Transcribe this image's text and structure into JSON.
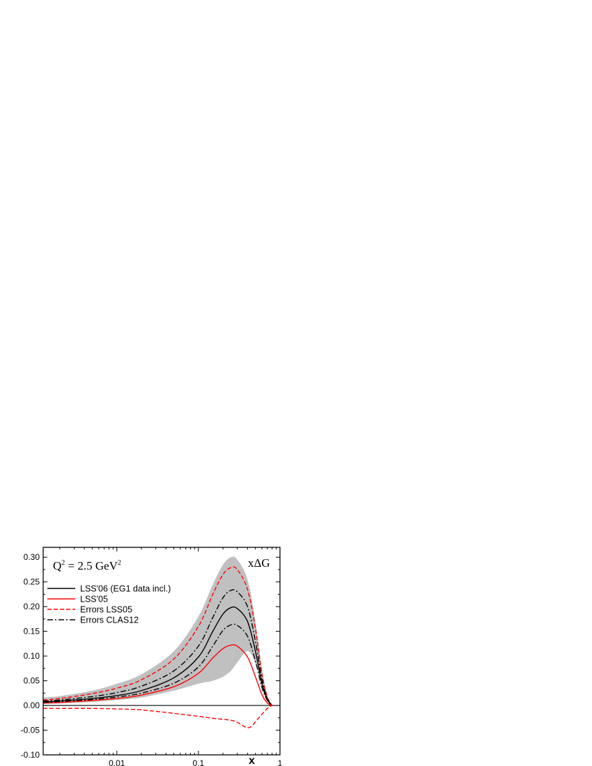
{
  "chart_data": {
    "type": "line",
    "annotation": "Q² = 2.5 GeV²",
    "annotation_parts": {
      "q": "Q",
      "q_exp": "2",
      "eq": " = 2.5 GeV",
      "gev_exp": "2"
    },
    "quantity_label": "xΔG",
    "xlabel": "x",
    "ylabel": "",
    "xscale": "log",
    "xlim": [
      0.00125,
      1.0
    ],
    "ylim": [
      -0.1,
      0.32
    ],
    "x_ticks": [
      {
        "value": 0.01,
        "label": "0.01"
      },
      {
        "value": 0.1,
        "label": "0.1"
      },
      {
        "value": 1,
        "label": "1"
      }
    ],
    "y_ticks": [
      {
        "value": -0.1,
        "label": "-0.10"
      },
      {
        "value": -0.05,
        "label": "-0.05"
      },
      {
        "value": 0.0,
        "label": "0.00"
      },
      {
        "value": 0.05,
        "label": "0.05"
      },
      {
        "value": 0.1,
        "label": "0.10"
      },
      {
        "value": 0.15,
        "label": "0.15"
      },
      {
        "value": 0.2,
        "label": "0.20"
      },
      {
        "value": 0.25,
        "label": "0.25"
      },
      {
        "value": 0.3,
        "label": "0.30"
      }
    ],
    "legend_placement": "top-left",
    "band": {
      "color": "#c0c0c0",
      "x": [
        0.00125,
        0.002,
        0.005,
        0.01,
        0.02,
        0.05,
        0.1,
        0.15,
        0.2,
        0.25,
        0.3,
        0.4,
        0.5,
        0.6,
        0.7,
        0.8
      ],
      "upper": [
        0.016,
        0.019,
        0.03,
        0.044,
        0.063,
        0.11,
        0.18,
        0.245,
        0.285,
        0.3,
        0.295,
        0.255,
        0.17,
        0.075,
        0.02,
        0.0
      ],
      "lower": [
        0.003,
        0.004,
        0.007,
        0.011,
        0.016,
        0.03,
        0.044,
        0.05,
        0.058,
        0.07,
        0.087,
        0.11,
        0.085,
        0.035,
        0.01,
        0.0
      ]
    },
    "series": [
      {
        "name": "LSS'06 (EG1 data incl.)",
        "color": "#000000",
        "style": "solid",
        "x": [
          0.00125,
          0.002,
          0.005,
          0.01,
          0.02,
          0.05,
          0.1,
          0.15,
          0.2,
          0.25,
          0.3,
          0.4,
          0.5,
          0.6,
          0.7,
          0.8
        ],
        "y": [
          0.007,
          0.009,
          0.014,
          0.02,
          0.03,
          0.056,
          0.098,
          0.15,
          0.185,
          0.198,
          0.196,
          0.17,
          0.11,
          0.045,
          0.012,
          0.0
        ]
      },
      {
        "name": "LSS'05",
        "color": "#ff0000",
        "style": "solid",
        "x": [
          0.00125,
          0.002,
          0.005,
          0.01,
          0.02,
          0.05,
          0.1,
          0.15,
          0.2,
          0.25,
          0.3,
          0.4,
          0.5,
          0.6,
          0.7,
          0.8
        ],
        "y": [
          0.005,
          0.006,
          0.01,
          0.014,
          0.021,
          0.038,
          0.065,
          0.096,
          0.115,
          0.122,
          0.12,
          0.098,
          0.058,
          0.022,
          0.005,
          0.0
        ]
      },
      {
        "name": "Errors LSS05",
        "color": "#ff0000",
        "style": "dashed",
        "x": [
          0.00125,
          0.002,
          0.005,
          0.01,
          0.02,
          0.05,
          0.1,
          0.15,
          0.2,
          0.25,
          0.3,
          0.4,
          0.5,
          0.6,
          0.7,
          0.8
        ],
        "y": [
          0.011,
          0.014,
          0.024,
          0.035,
          0.052,
          0.094,
          0.16,
          0.225,
          0.265,
          0.279,
          0.275,
          0.235,
          0.155,
          0.065,
          0.017,
          0.0
        ]
      },
      {
        "name": "",
        "color": "#ff0000",
        "style": "dashed",
        "x": [
          0.00125,
          0.002,
          0.005,
          0.01,
          0.02,
          0.05,
          0.1,
          0.15,
          0.2,
          0.25,
          0.3,
          0.35,
          0.4,
          0.45,
          0.5,
          0.6,
          0.7,
          0.8
        ],
        "y": [
          -0.006,
          -0.006,
          -0.006,
          -0.007,
          -0.009,
          -0.016,
          -0.022,
          -0.026,
          -0.028,
          -0.03,
          -0.034,
          -0.041,
          -0.045,
          -0.042,
          -0.033,
          -0.018,
          -0.006,
          0.0
        ]
      },
      {
        "name": "Errors CLAS12",
        "color": "#000000",
        "style": "dashdot",
        "x": [
          0.00125,
          0.002,
          0.005,
          0.01,
          0.02,
          0.05,
          0.1,
          0.15,
          0.2,
          0.25,
          0.3,
          0.4,
          0.5,
          0.6,
          0.7,
          0.8
        ],
        "y": [
          0.009,
          0.011,
          0.018,
          0.026,
          0.039,
          0.07,
          0.12,
          0.178,
          0.218,
          0.233,
          0.23,
          0.2,
          0.13,
          0.054,
          0.014,
          0.0
        ]
      },
      {
        "name": "",
        "color": "#000000",
        "style": "dashdot",
        "x": [
          0.00125,
          0.002,
          0.005,
          0.01,
          0.02,
          0.05,
          0.1,
          0.15,
          0.2,
          0.25,
          0.3,
          0.4,
          0.5,
          0.6,
          0.7,
          0.8
        ],
        "y": [
          0.006,
          0.008,
          0.012,
          0.017,
          0.025,
          0.045,
          0.078,
          0.12,
          0.152,
          0.163,
          0.162,
          0.14,
          0.09,
          0.037,
          0.01,
          0.0
        ]
      }
    ]
  }
}
